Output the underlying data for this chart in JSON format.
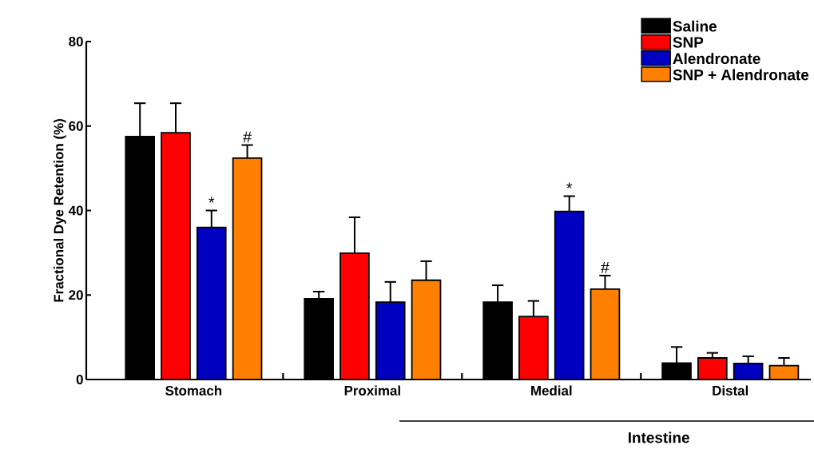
{
  "chart_data": {
    "type": "bar",
    "ylabel": "Fractional Dye Retention (%)",
    "categories": [
      "Stomach",
      "Proximal",
      "Medial",
      "Distal"
    ],
    "series": [
      {
        "name": "Saline",
        "color": "#000000",
        "values": [
          57.5,
          19.1,
          18.3,
          3.9
        ],
        "errors": [
          [
            57.5,
            65.4
          ],
          [
            19.1,
            20.8
          ],
          [
            18.3,
            22.3
          ],
          [
            3.9,
            7.7
          ]
        ]
      },
      {
        "name": "SNP",
        "color": "#ff0000",
        "values": [
          58.4,
          29.9,
          14.9,
          5.1
        ],
        "errors": [
          [
            58.4,
            65.4
          ],
          [
            29.9,
            38.4
          ],
          [
            14.9,
            18.6
          ],
          [
            5.1,
            6.3
          ]
        ]
      },
      {
        "name": "Alendronate",
        "color": "#0000c0",
        "values": [
          36,
          18.3,
          39.8,
          3.8
        ],
        "errors": [
          [
            36,
            40
          ],
          [
            18.3,
            23.1
          ],
          [
            39.8,
            43.4
          ],
          [
            3.8,
            5.5
          ]
        ]
      },
      {
        "name": "SNP + Alendronate",
        "color": "#ff8000",
        "values": [
          52.4,
          23.5,
          21.4,
          3.3
        ],
        "errors": [
          [
            52.4,
            55.5
          ],
          [
            23.5,
            28
          ],
          [
            21.4,
            24.6
          ],
          [
            3.3,
            5.1
          ]
        ]
      }
    ],
    "ylim": [
      0,
      80
    ],
    "yticks": [
      0,
      20,
      40,
      60,
      80
    ],
    "grid": false,
    "legend": "top right",
    "annotations": [
      "*",
      "#",
      "*",
      "#",
      "Intestine"
    ]
  }
}
